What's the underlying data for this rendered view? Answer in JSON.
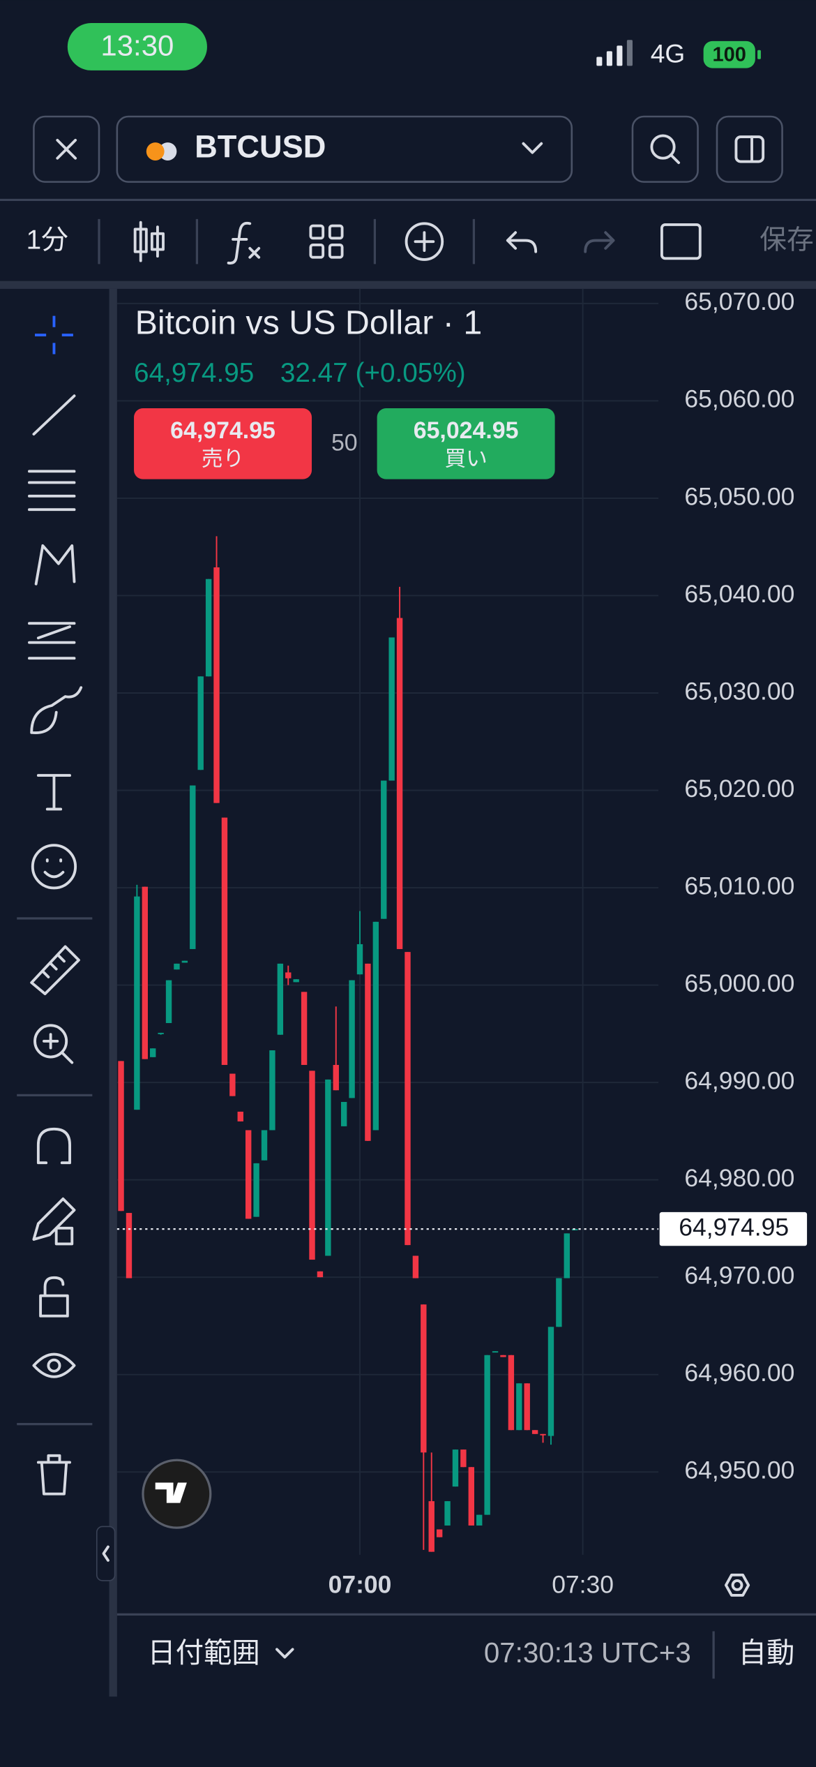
{
  "status_bar": {
    "time": "13:30",
    "network": "4G",
    "battery": "100"
  },
  "header": {
    "symbol": "BTCUSD"
  },
  "toolbar": {
    "interval": "1分",
    "save": "保存"
  },
  "legend": {
    "title": "Bitcoin vs US Dollar · 1",
    "last": "64,974.95",
    "change": "32.47 (+0.05%)"
  },
  "trade": {
    "sell_price": "64,974.95",
    "sell_label": "売り",
    "spread": "50",
    "buy_price": "65,024.95",
    "buy_label": "買い"
  },
  "chart_data": {
    "type": "candlestick",
    "up_color": "#089981",
    "down_color": "#f23645",
    "grid": true,
    "open": [
      64992.2,
      64976.6,
      64987.2,
      65010.1,
      64992.6,
      64995.0,
      64996.1,
      65001.6,
      65002.3,
      65003.7,
      65022.1,
      65031.7,
      65042.9,
      65017.2,
      64990.9,
      64987.0,
      64985.1,
      64976.2,
      64982.0,
      64985.1,
      64994.9,
      65001.3,
      65000.3,
      64999.3,
      64991.2,
      64970.6,
      64972.2,
      64991.8,
      64985.5,
      64988.4,
      65001.1,
      65002.2,
      64985.1,
      65006.8,
      65021.0,
      65037.7,
      65003.4,
      64972.2,
      64967.2,
      64947.0,
      64944.1,
      64944.5,
      64948.5,
      64952.3,
      64950.5,
      64944.5,
      64945.6,
      64962.3,
      64962.0,
      64962.0,
      64954.3,
      64959.1,
      64954.3,
      64953.9,
      64953.7,
      64964.9,
      64969.9,
      64974.9
    ],
    "high": [
      64992.2,
      64976.6,
      65010.3,
      65010.1,
      64993.5,
      64995.1,
      65000.5,
      65002.2,
      65002.5,
      65020.5,
      65031.7,
      65041.7,
      65046.1,
      65017.2,
      64990.9,
      64987.0,
      64985.1,
      64981.7,
      64985.1,
      64993.3,
      65002.2,
      65002.0,
      65000.6,
      64999.3,
      64991.2,
      64970.6,
      64990.3,
      64997.8,
      64988.0,
      65000.5,
      65007.6,
      65002.2,
      65006.5,
      65021.0,
      65035.7,
      65040.9,
      65003.4,
      64972.2,
      64967.2,
      64952.0,
      64944.1,
      64947.0,
      64952.3,
      64952.3,
      64950.5,
      64945.6,
      64962.0,
      64962.4,
      64962.0,
      64962.0,
      64959.1,
      64959.1,
      64954.3,
      64953.9,
      64964.9,
      64969.9,
      64974.5,
      64974.95
    ],
    "low": [
      64976.8,
      64969.9,
      64987.2,
      64992.4,
      64992.6,
      64994.9,
      64996.1,
      65001.6,
      65002.3,
      65003.7,
      65022.1,
      65031.7,
      65018.7,
      64991.8,
      64988.6,
      64986.0,
      64976.0,
      64976.2,
      64982.0,
      64985.1,
      64994.9,
      65000.0,
      65000.3,
      64991.8,
      64971.8,
      64970.0,
      64972.2,
      64989.2,
      64985.5,
      64988.4,
      65001.1,
      64984.0,
      64985.1,
      65006.8,
      65021.0,
      65003.7,
      64973.3,
      64969.9,
      64942.0,
      64941.8,
      64943.3,
      64944.5,
      64948.5,
      64950.5,
      64944.5,
      64944.5,
      64945.6,
      64962.3,
      64961.8,
      64954.3,
      64954.3,
      64954.3,
      64953.9,
      64953.0,
      64952.8,
      64964.9,
      64969.9,
      64974.9
    ],
    "close": [
      64976.8,
      64969.9,
      65009.1,
      64992.4,
      64993.5,
      64995.1,
      65000.5,
      65002.2,
      65002.5,
      65020.5,
      65031.7,
      65041.7,
      65018.7,
      64991.8,
      64988.6,
      64986.0,
      64976.0,
      64981.7,
      64985.1,
      64993.3,
      65002.2,
      65000.7,
      65000.6,
      64991.8,
      64971.8,
      64970.0,
      64990.3,
      64989.2,
      64988.0,
      65000.5,
      65004.2,
      64984.0,
      65006.5,
      65021.0,
      65035.7,
      65003.7,
      64973.3,
      64969.9,
      64952.0,
      64941.8,
      64943.3,
      64947.0,
      64952.3,
      64950.5,
      64944.5,
      64945.6,
      64962.0,
      64962.4,
      64961.8,
      64954.3,
      64959.1,
      64954.3,
      64953.9,
      64953.8,
      64964.9,
      64969.9,
      64974.5,
      64974.95
    ],
    "xlim": [
      -0.5,
      67.5
    ],
    "xticks": [
      {
        "value": 30,
        "label": "07:00"
      },
      {
        "value": 58,
        "label": "07:30"
      }
    ],
    "ylim": [
      64941.5,
      65071.5
    ],
    "yticks": [
      {
        "value": 65070,
        "label": "65,070.00"
      },
      {
        "value": 65060,
        "label": "65,060.00"
      },
      {
        "value": 65050,
        "label": "65,050.00"
      },
      {
        "value": 65040,
        "label": "65,040.00"
      },
      {
        "value": 65030,
        "label": "65,030.00"
      },
      {
        "value": 65020,
        "label": "65,020.00"
      },
      {
        "value": 65010,
        "label": "65,010.00"
      },
      {
        "value": 65000,
        "label": "65,000.00"
      },
      {
        "value": 64990,
        "label": "64,990.00"
      },
      {
        "value": 64980,
        "label": "64,980.00"
      },
      {
        "value": 64970,
        "label": "64,970.00"
      },
      {
        "value": 64960,
        "label": "64,960.00"
      },
      {
        "value": 64950,
        "label": "64,950.00"
      }
    ],
    "last_price": {
      "value": 64974.95,
      "label": "64,974.95"
    }
  },
  "footer": {
    "date_range": "日付範囲",
    "clock": "07:30:13 UTC+3",
    "scale": "自動"
  }
}
